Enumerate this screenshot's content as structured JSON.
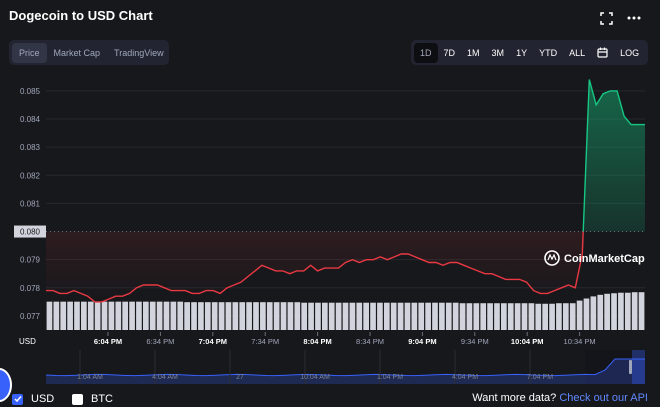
{
  "header": {
    "title": "Dogecoin to USD Chart",
    "fullscreen_icon": "fullscreen-icon",
    "more_icon": "more-icon"
  },
  "view_tabs": [
    {
      "label": "Price",
      "active": true
    },
    {
      "label": "Market Cap",
      "active": false
    },
    {
      "label": "TradingView",
      "active": false
    }
  ],
  "range_tabs": [
    {
      "label": "1D",
      "active": true
    },
    {
      "label": "7D",
      "active": false
    },
    {
      "label": "1M",
      "active": false
    },
    {
      "label": "3M",
      "active": false
    },
    {
      "label": "1Y",
      "active": false
    },
    {
      "label": "YTD",
      "active": false
    },
    {
      "label": "ALL",
      "active": false
    }
  ],
  "calendar_icon": "calendar-icon",
  "log_label": "LOG",
  "colors": {
    "up": "#16c784",
    "down": "#ea3943",
    "volume": "#d1d4dc",
    "accent": "#3861fb",
    "link": "#6188ff"
  },
  "chart_data": {
    "type": "line",
    "currency_label": "USD",
    "reference_price": 0.08,
    "reference_label": "0.080",
    "ylim": [
      0.0765,
      0.0856
    ],
    "yticks": [
      "0.077",
      "0.078",
      "0.079",
      "0.080",
      "0.081",
      "0.082",
      "0.083",
      "0.084",
      "0.085"
    ],
    "xticks": [
      "6:04 PM",
      "6:34 PM",
      "7:04 PM",
      "7:34 PM",
      "8:04 PM",
      "8:34 PM",
      "9:04 PM",
      "9:34 PM",
      "10:04 PM",
      "10:34 PM"
    ],
    "watermark": "CoinMarketCap",
    "price": [
      0.0779,
      0.0779,
      0.0778,
      0.0778,
      0.0779,
      0.0778,
      0.0777,
      0.0775,
      0.0775,
      0.0776,
      0.0777,
      0.0777,
      0.0778,
      0.078,
      0.0781,
      0.0781,
      0.0781,
      0.078,
      0.0779,
      0.0779,
      0.0779,
      0.0778,
      0.0778,
      0.0779,
      0.0779,
      0.0778,
      0.078,
      0.0781,
      0.0782,
      0.0784,
      0.0786,
      0.0788,
      0.0787,
      0.0786,
      0.0786,
      0.0785,
      0.0786,
      0.0786,
      0.0788,
      0.0786,
      0.0787,
      0.0787,
      0.0787,
      0.0789,
      0.079,
      0.0789,
      0.079,
      0.079,
      0.0791,
      0.079,
      0.0791,
      0.0792,
      0.0792,
      0.0791,
      0.079,
      0.0789,
      0.0789,
      0.0788,
      0.0789,
      0.0789,
      0.0788,
      0.0787,
      0.0786,
      0.0785,
      0.0785,
      0.0784,
      0.0783,
      0.0783,
      0.0783,
      0.0782,
      0.0779,
      0.0778,
      0.0778,
      0.0779,
      0.078,
      0.0781,
      0.078,
      0.0792,
      0.0854,
      0.0845,
      0.0849,
      0.085,
      0.085,
      0.0841,
      0.0838,
      0.0838,
      0.0838
    ],
    "volume": [
      0.54,
      0.54,
      0.54,
      0.54,
      0.54,
      0.54,
      0.54,
      0.54,
      0.54,
      0.54,
      0.54,
      0.54,
      0.54,
      0.54,
      0.54,
      0.54,
      0.54,
      0.54,
      0.54,
      0.54,
      0.53,
      0.53,
      0.53,
      0.53,
      0.53,
      0.53,
      0.53,
      0.53,
      0.53,
      0.53,
      0.53,
      0.53,
      0.53,
      0.53,
      0.53,
      0.53,
      0.53,
      0.52,
      0.52,
      0.52,
      0.52,
      0.52,
      0.52,
      0.52,
      0.52,
      0.52,
      0.52,
      0.52,
      0.52,
      0.52,
      0.52,
      0.52,
      0.52,
      0.52,
      0.52,
      0.52,
      0.52,
      0.52,
      0.52,
      0.52,
      0.51,
      0.51,
      0.51,
      0.51,
      0.51,
      0.51,
      0.51,
      0.51,
      0.51,
      0.51,
      0.51,
      0.5,
      0.5,
      0.5,
      0.51,
      0.51,
      0.51,
      0.56,
      0.6,
      0.64,
      0.67,
      0.69,
      0.7,
      0.71,
      0.71,
      0.72,
      0.72
    ],
    "navigator_labels": [
      "1:04 AM",
      "4:04 AM",
      "27",
      "10:04 AM",
      "1:04 PM",
      "4:04 PM",
      "7:04 PM"
    ]
  },
  "legend": [
    {
      "label": "USD",
      "checked": true
    },
    {
      "label": "BTC",
      "checked": false
    }
  ],
  "footer": {
    "prompt": "Want more data?",
    "link": "Check out our API"
  }
}
